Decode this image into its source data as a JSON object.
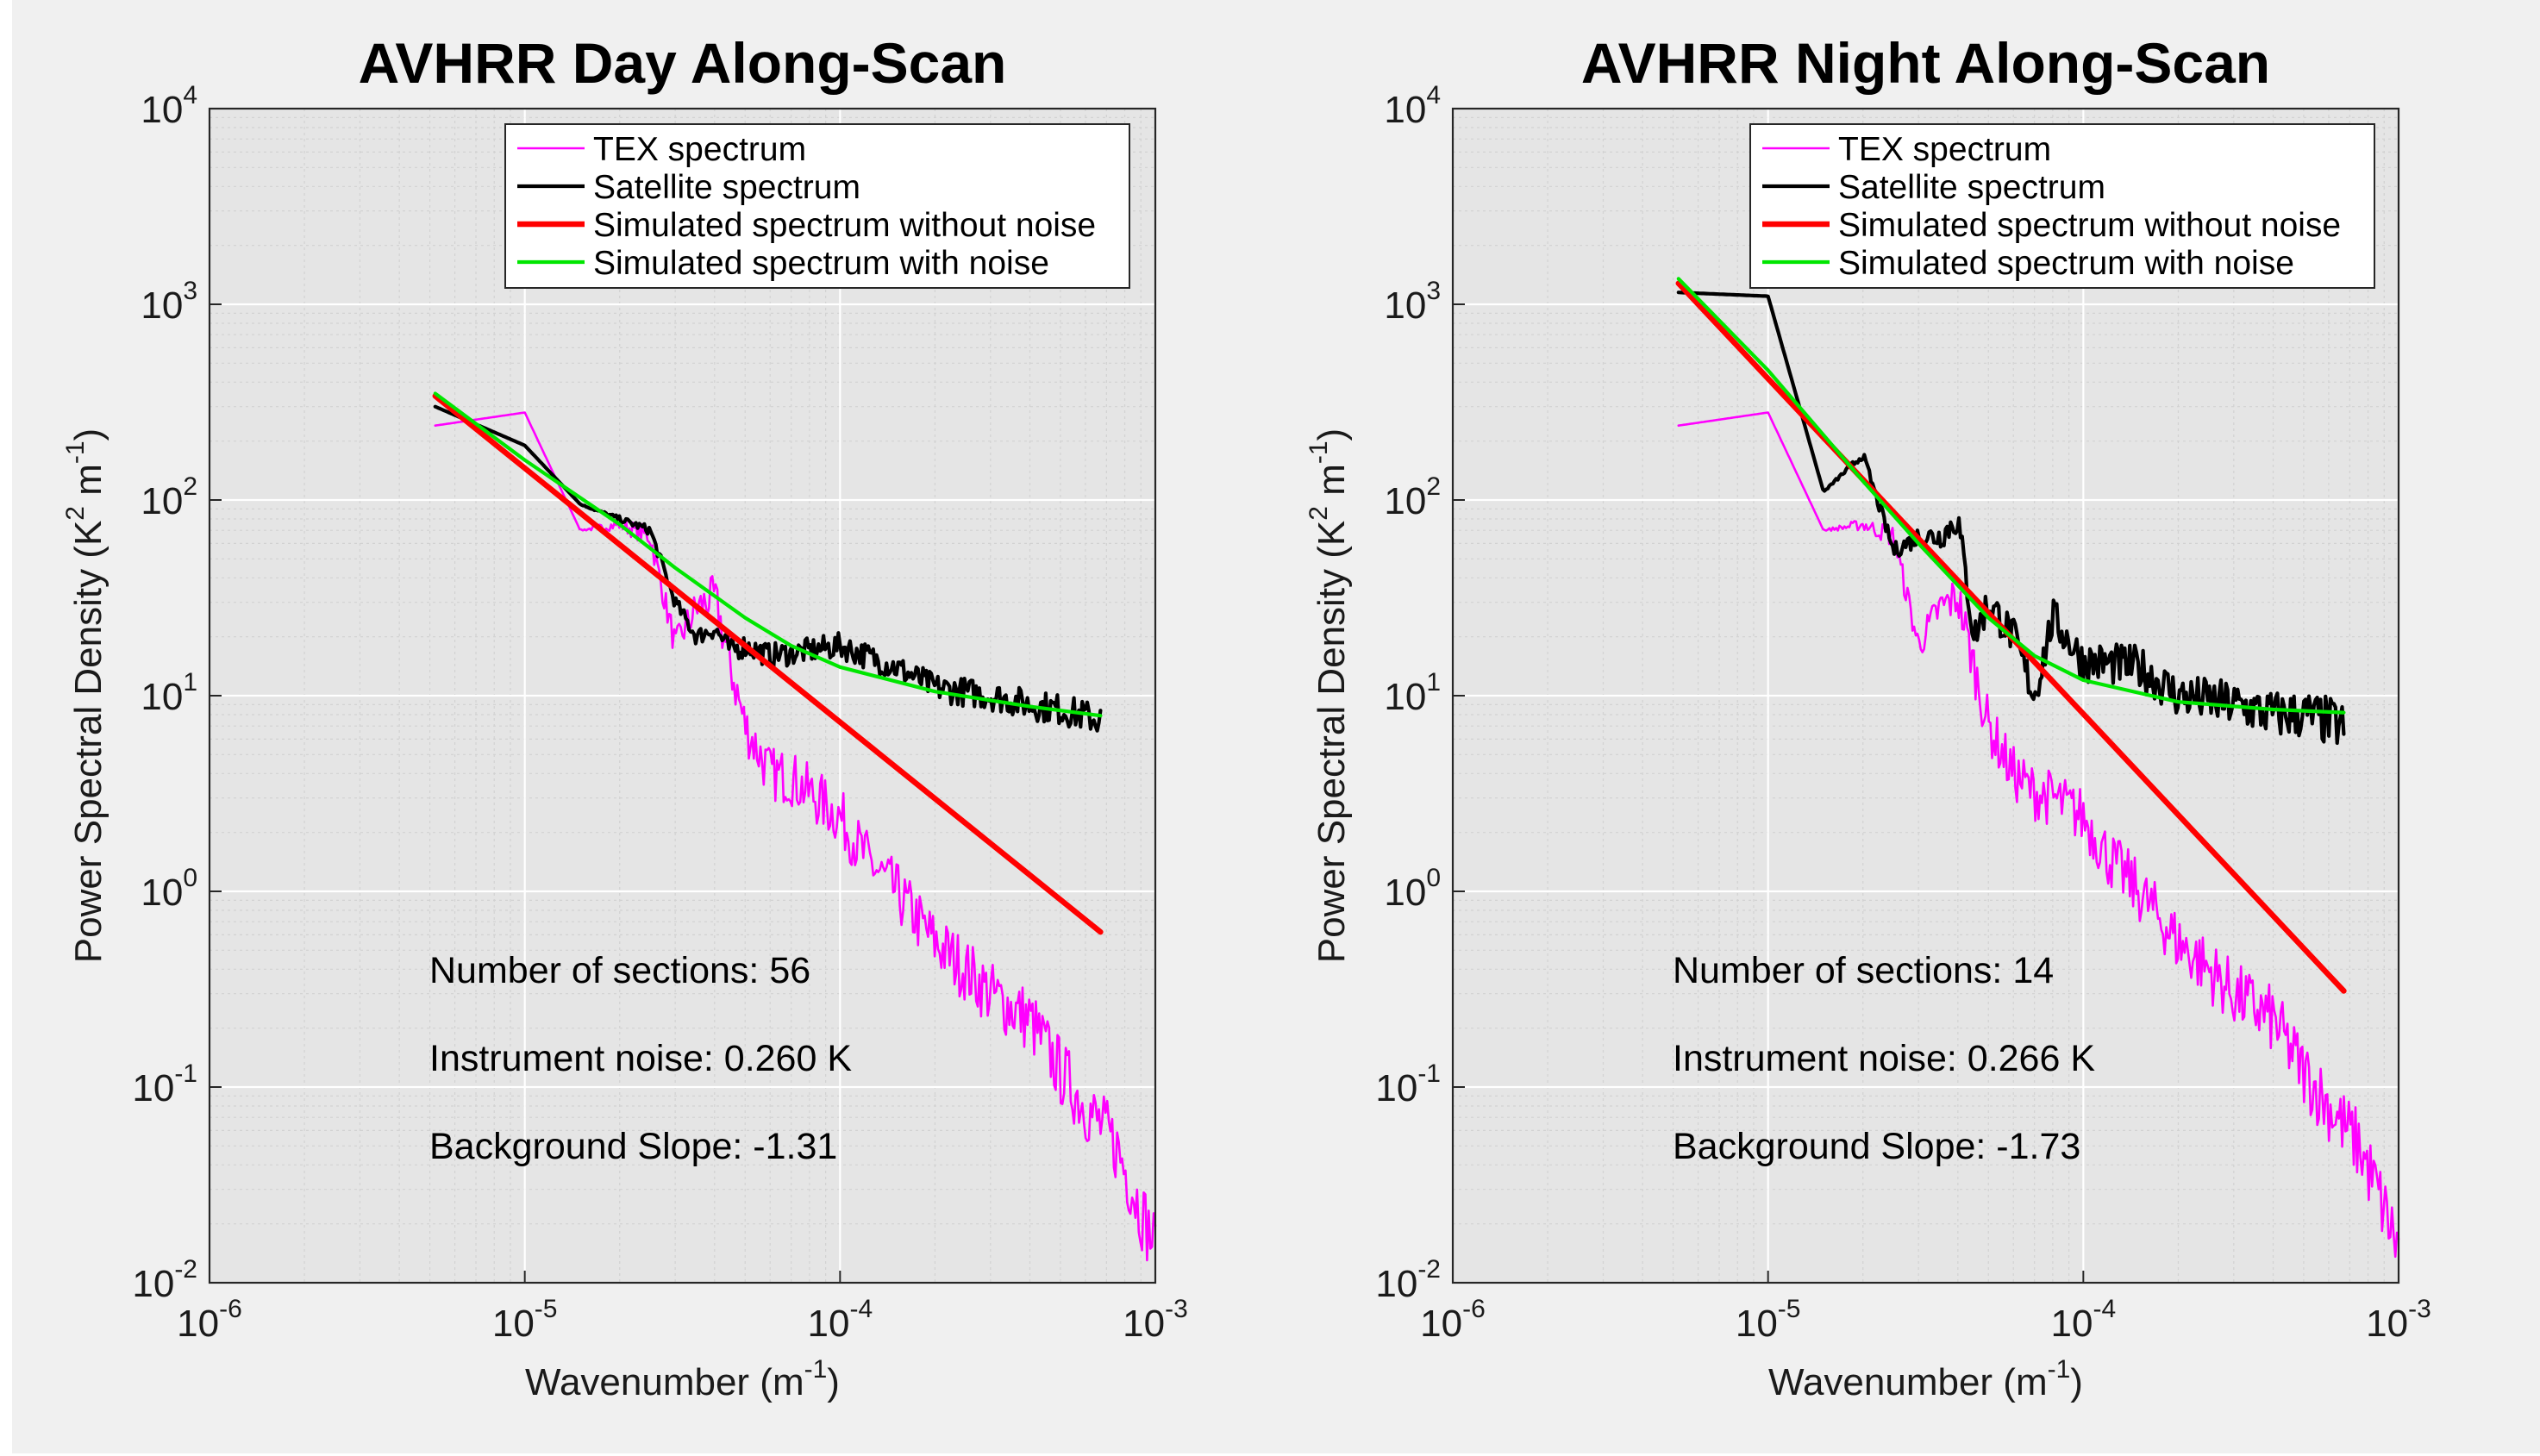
{
  "chart_data": [
    {
      "type": "line",
      "title": "AVHRR Day Along-Scan",
      "xlabel": "Wavenumber (m",
      "xlabel_sup": "-1",
      "xlabel_end": ")",
      "ylabel": "Power Spectral Density (K",
      "ylabel_sup1": "2",
      "ylabel_mid": " m",
      "ylabel_sup2": "-1",
      "ylabel_end": ")",
      "xscale": "log",
      "yscale": "log",
      "xlim": [
        1e-06,
        0.001
      ],
      "ylim": [
        0.01,
        10000.0
      ],
      "x_ticks": [
        {
          "base": "10",
          "exp": "-6"
        },
        {
          "base": "10",
          "exp": "-5"
        },
        {
          "base": "10",
          "exp": "-4"
        },
        {
          "base": "10",
          "exp": "-3"
        }
      ],
      "y_ticks": [
        {
          "base": "10",
          "exp": "-2"
        },
        {
          "base": "10",
          "exp": "-1"
        },
        {
          "base": "10",
          "exp": "0"
        },
        {
          "base": "10",
          "exp": "1"
        },
        {
          "base": "10",
          "exp": "2"
        },
        {
          "base": "10",
          "exp": "3"
        },
        {
          "base": "10",
          "exp": "4"
        }
      ],
      "grid": true,
      "legend_position": "top-right",
      "series": [
        {
          "name": "TEX spectrum",
          "color": "#ff00ff",
          "width": "thin",
          "x": [
            5.2e-06,
            1e-05,
            1.5e-05,
            2e-05,
            2.5e-05,
            3e-05,
            3.5e-05,
            4e-05,
            4.5e-05,
            5e-05,
            6e-05,
            7e-05,
            8e-05,
            0.0001,
            0.00012,
            0.00015,
            0.0002,
            0.00025,
            0.0003,
            0.0004,
            0.0005,
            0.0006,
            0.00075,
            0.00085,
            0.001
          ],
          "y": [
            240,
            280,
            70,
            75,
            65,
            18,
            28,
            32,
            14,
            7,
            4,
            3.8,
            3.2,
            2.4,
            1.5,
            1.0,
            0.55,
            0.4,
            0.3,
            0.22,
            0.12,
            0.08,
            0.05,
            0.03,
            0.015
          ],
          "noise_amp": 0.16
        },
        {
          "name": "Satellite spectrum",
          "color": "#000000",
          "width": "medium",
          "x": [
            5.2e-06,
            1e-05,
            1.5e-05,
            2e-05,
            2.5e-05,
            3e-05,
            3.5e-05,
            4e-05,
            4.5e-05,
            5e-05,
            6e-05,
            8e-05,
            0.0001,
            0.00015,
            0.0002,
            0.0003,
            0.0004,
            0.0005,
            0.00067
          ],
          "y": [
            300,
            190,
            95,
            80,
            70,
            30,
            20,
            22,
            17,
            18,
            16,
            17,
            18,
            14,
            11,
            10,
            9,
            8.5,
            7.5
          ],
          "noise_amp": 0.07
        },
        {
          "name": "Simulated spectrum without noise",
          "color": "#ff0000",
          "width": "thick",
          "x": [
            5.2e-06,
            0.00067
          ],
          "y": [
            340,
            0.62
          ]
        },
        {
          "name": "Simulated spectrum with noise",
          "color": "#00e600",
          "width": "medium",
          "x": [
            5.2e-06,
            1e-05,
            2e-05,
            3e-05,
            5e-05,
            7e-05,
            0.0001,
            0.0002,
            0.0004,
            0.00067
          ],
          "y": [
            350,
            160,
            75,
            45,
            25,
            18,
            14,
            10.5,
            8.8,
            7.9
          ]
        }
      ],
      "annotations": [
        "Number of sections: 56",
        "Instrument noise: 0.260 K",
        "Background Slope: -1.31"
      ]
    },
    {
      "type": "line",
      "title": "AVHRR Night Along-Scan",
      "xlabel": "Wavenumber (m",
      "xlabel_sup": "-1",
      "xlabel_end": ")",
      "ylabel": "Power Spectral Density (K",
      "ylabel_sup1": "2",
      "ylabel_mid": " m",
      "ylabel_sup2": "-1",
      "ylabel_end": ")",
      "xscale": "log",
      "yscale": "log",
      "xlim": [
        1e-06,
        0.001
      ],
      "ylim": [
        0.01,
        10000.0
      ],
      "x_ticks": [
        {
          "base": "10",
          "exp": "-6"
        },
        {
          "base": "10",
          "exp": "-5"
        },
        {
          "base": "10",
          "exp": "-4"
        },
        {
          "base": "10",
          "exp": "-3"
        }
      ],
      "y_ticks": [
        {
          "base": "10",
          "exp": "-2"
        },
        {
          "base": "10",
          "exp": "-1"
        },
        {
          "base": "10",
          "exp": "0"
        },
        {
          "base": "10",
          "exp": "1"
        },
        {
          "base": "10",
          "exp": "2"
        },
        {
          "base": "10",
          "exp": "3"
        },
        {
          "base": "10",
          "exp": "4"
        }
      ],
      "grid": true,
      "legend_position": "top-right",
      "series": [
        {
          "name": "TEX spectrum",
          "color": "#ff00ff",
          "width": "thin",
          "x": [
            5.2e-06,
            1e-05,
            1.5e-05,
            2e-05,
            2.5e-05,
            3e-05,
            3.5e-05,
            4e-05,
            4.5e-05,
            5e-05,
            6e-05,
            7e-05,
            8e-05,
            0.0001,
            0.00012,
            0.00015,
            0.0002,
            0.00025,
            0.0003,
            0.0004,
            0.0005,
            0.0006,
            0.00075,
            0.00085,
            0.001
          ],
          "y": [
            240,
            280,
            70,
            75,
            65,
            18,
            28,
            32,
            14,
            7,
            4,
            3.2,
            3.0,
            2.4,
            1.5,
            1.0,
            0.55,
            0.4,
            0.3,
            0.22,
            0.12,
            0.08,
            0.05,
            0.03,
            0.015
          ],
          "noise_amp": 0.16
        },
        {
          "name": "Satellite spectrum",
          "color": "#000000",
          "width": "medium",
          "x": [
            5.2e-06,
            1e-05,
            1.5e-05,
            2e-05,
            2.5e-05,
            3e-05,
            3.5e-05,
            4e-05,
            4.5e-05,
            5e-05,
            6e-05,
            7e-05,
            8e-05,
            0.0001,
            0.00015,
            0.0002,
            0.0003,
            0.0004,
            0.0005,
            0.00067
          ],
          "y": [
            1150,
            1100,
            110,
            170,
            55,
            65,
            65,
            80,
            20,
            30,
            20,
            10,
            25,
            15,
            14,
            10,
            9,
            8,
            8,
            7
          ],
          "noise_amp": 0.11
        },
        {
          "name": "Simulated spectrum without noise",
          "color": "#ff0000",
          "width": "thick",
          "x": [
            5.2e-06,
            0.00067
          ],
          "y": [
            1280,
            0.31
          ]
        },
        {
          "name": "Simulated spectrum with noise",
          "color": "#00e600",
          "width": "medium",
          "x": [
            5.2e-06,
            1e-05,
            2e-05,
            3e-05,
            5e-05,
            7e-05,
            0.0001,
            0.0002,
            0.0004,
            0.00067
          ],
          "y": [
            1350,
            460,
            125,
            60,
            25,
            16,
            12,
            9.3,
            8.5,
            8.2
          ]
        }
      ],
      "annotations": [
        "Number of sections: 14",
        "Instrument noise: 0.266 K",
        "Background Slope: -1.73"
      ]
    }
  ]
}
